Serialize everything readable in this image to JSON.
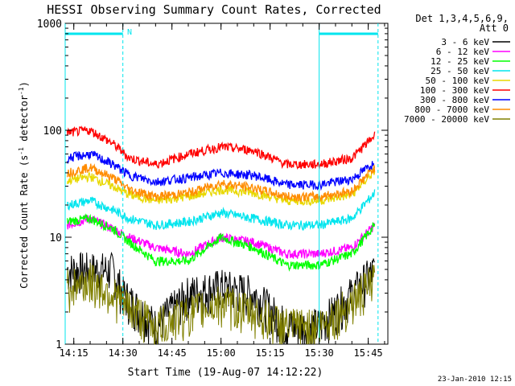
{
  "chart_data": {
    "type": "line",
    "title": "HESSI Observing Summary Count Rates, Corrected",
    "xlabel": "Start Time (19-Aug-07 14:12:22)",
    "ylabel_main": "Corrected Count Rate (s",
    "ylabel_sup1": "-1",
    "ylabel_mid": " detector",
    "ylabel_sup2": "-1",
    "ylabel_end": ")",
    "yscale": "log",
    "ylim": [
      1,
      1000
    ],
    "xlim": [
      "14:12:22",
      "15:51:00"
    ],
    "x_ticks": [
      "14:15",
      "14:30",
      "14:45",
      "15:00",
      "15:15",
      "15:30",
      "15:45"
    ],
    "y_ticks": [
      "1",
      "10",
      "100",
      "1000"
    ],
    "legend_title": [
      "Det 1,3,4,5,6,9,",
      "Att 0"
    ],
    "legend_position": "right",
    "timestamp": "23-Jan-2010 12:15",
    "night_marker_label": "N",
    "bar_color": "#00e5ee",
    "series": [
      {
        "name": "3 - 6 keV",
        "color": "#000000",
        "x": [
          "14:13",
          "14:20",
          "14:27",
          "14:30",
          "14:40",
          "14:50",
          "15:00",
          "15:10",
          "15:20",
          "15:30",
          "15:40",
          "15:47"
        ],
        "y": [
          5,
          5,
          5,
          3,
          1.5,
          3,
          3.5,
          3,
          1.5,
          1.5,
          3,
          5
        ]
      },
      {
        "name": "6 - 12 keV",
        "color": "#ff00ff",
        "x": [
          "14:13",
          "14:20",
          "14:27",
          "14:32",
          "14:40",
          "14:50",
          "15:00",
          "15:10",
          "15:20",
          "15:30",
          "15:40",
          "15:47"
        ],
        "y": [
          13,
          15,
          12,
          10,
          8,
          7,
          10,
          9,
          7,
          7,
          8,
          13
        ]
      },
      {
        "name": "12 - 25 keV",
        "color": "#00ff00",
        "x": [
          "14:13",
          "14:20",
          "14:27",
          "14:32",
          "14:40",
          "14:50",
          "15:00",
          "15:10",
          "15:20",
          "15:30",
          "15:40",
          "15:47"
        ],
        "y": [
          14,
          15,
          12,
          9,
          6,
          6,
          10,
          8,
          5.5,
          5.5,
          7,
          13
        ]
      },
      {
        "name": "25 - 50 keV",
        "color": "#00e5ee",
        "x": [
          "14:13",
          "14:20",
          "14:27",
          "14:32",
          "14:40",
          "14:50",
          "15:00",
          "15:10",
          "15:20",
          "15:30",
          "15:40",
          "15:47"
        ],
        "y": [
          20,
          22,
          18,
          15,
          13,
          14,
          17,
          15,
          13,
          13,
          15,
          26
        ]
      },
      {
        "name": "50 - 100 keV",
        "color": "#e8d800",
        "x": [
          "14:13",
          "14:20",
          "14:27",
          "14:32",
          "14:40",
          "14:50",
          "15:00",
          "15:10",
          "15:20",
          "15:30",
          "15:40",
          "15:47"
        ],
        "y": [
          34,
          37,
          30,
          25,
          22,
          24,
          28,
          26,
          22,
          22,
          25,
          42
        ]
      },
      {
        "name": "100 - 300 keV",
        "color": "#ff0000",
        "x": [
          "14:13",
          "14:20",
          "14:27",
          "14:32",
          "14:40",
          "14:50",
          "15:00",
          "15:10",
          "15:20",
          "15:30",
          "15:40",
          "15:47"
        ],
        "y": [
          95,
          100,
          75,
          55,
          48,
          60,
          70,
          65,
          48,
          48,
          55,
          90
        ]
      },
      {
        "name": "300 - 800 keV",
        "color": "#0000ff",
        "x": [
          "14:13",
          "14:20",
          "14:27",
          "14:32",
          "14:40",
          "14:50",
          "15:00",
          "15:10",
          "15:20",
          "15:30",
          "15:40",
          "15:47"
        ],
        "y": [
          55,
          60,
          48,
          38,
          33,
          36,
          40,
          38,
          31,
          31,
          35,
          50
        ]
      },
      {
        "name": "800 - 7000 keV",
        "color": "#ff8c00",
        "x": [
          "14:13",
          "14:20",
          "14:27",
          "14:32",
          "14:40",
          "14:50",
          "15:00",
          "15:10",
          "15:20",
          "15:30",
          "15:40",
          "15:47"
        ],
        "y": [
          40,
          45,
          36,
          28,
          24,
          26,
          32,
          29,
          24,
          24,
          27,
          45
        ]
      },
      {
        "name": "7000 - 20000 keV",
        "color": "#808000",
        "x": [
          "14:13",
          "14:20",
          "14:27",
          "14:30",
          "14:40",
          "14:50",
          "15:00",
          "15:10",
          "15:20",
          "15:30",
          "15:40",
          "15:47"
        ],
        "y": [
          3.5,
          4,
          3,
          2.5,
          1.5,
          2,
          2.5,
          2,
          1.5,
          1.5,
          2.5,
          4
        ]
      }
    ]
  }
}
